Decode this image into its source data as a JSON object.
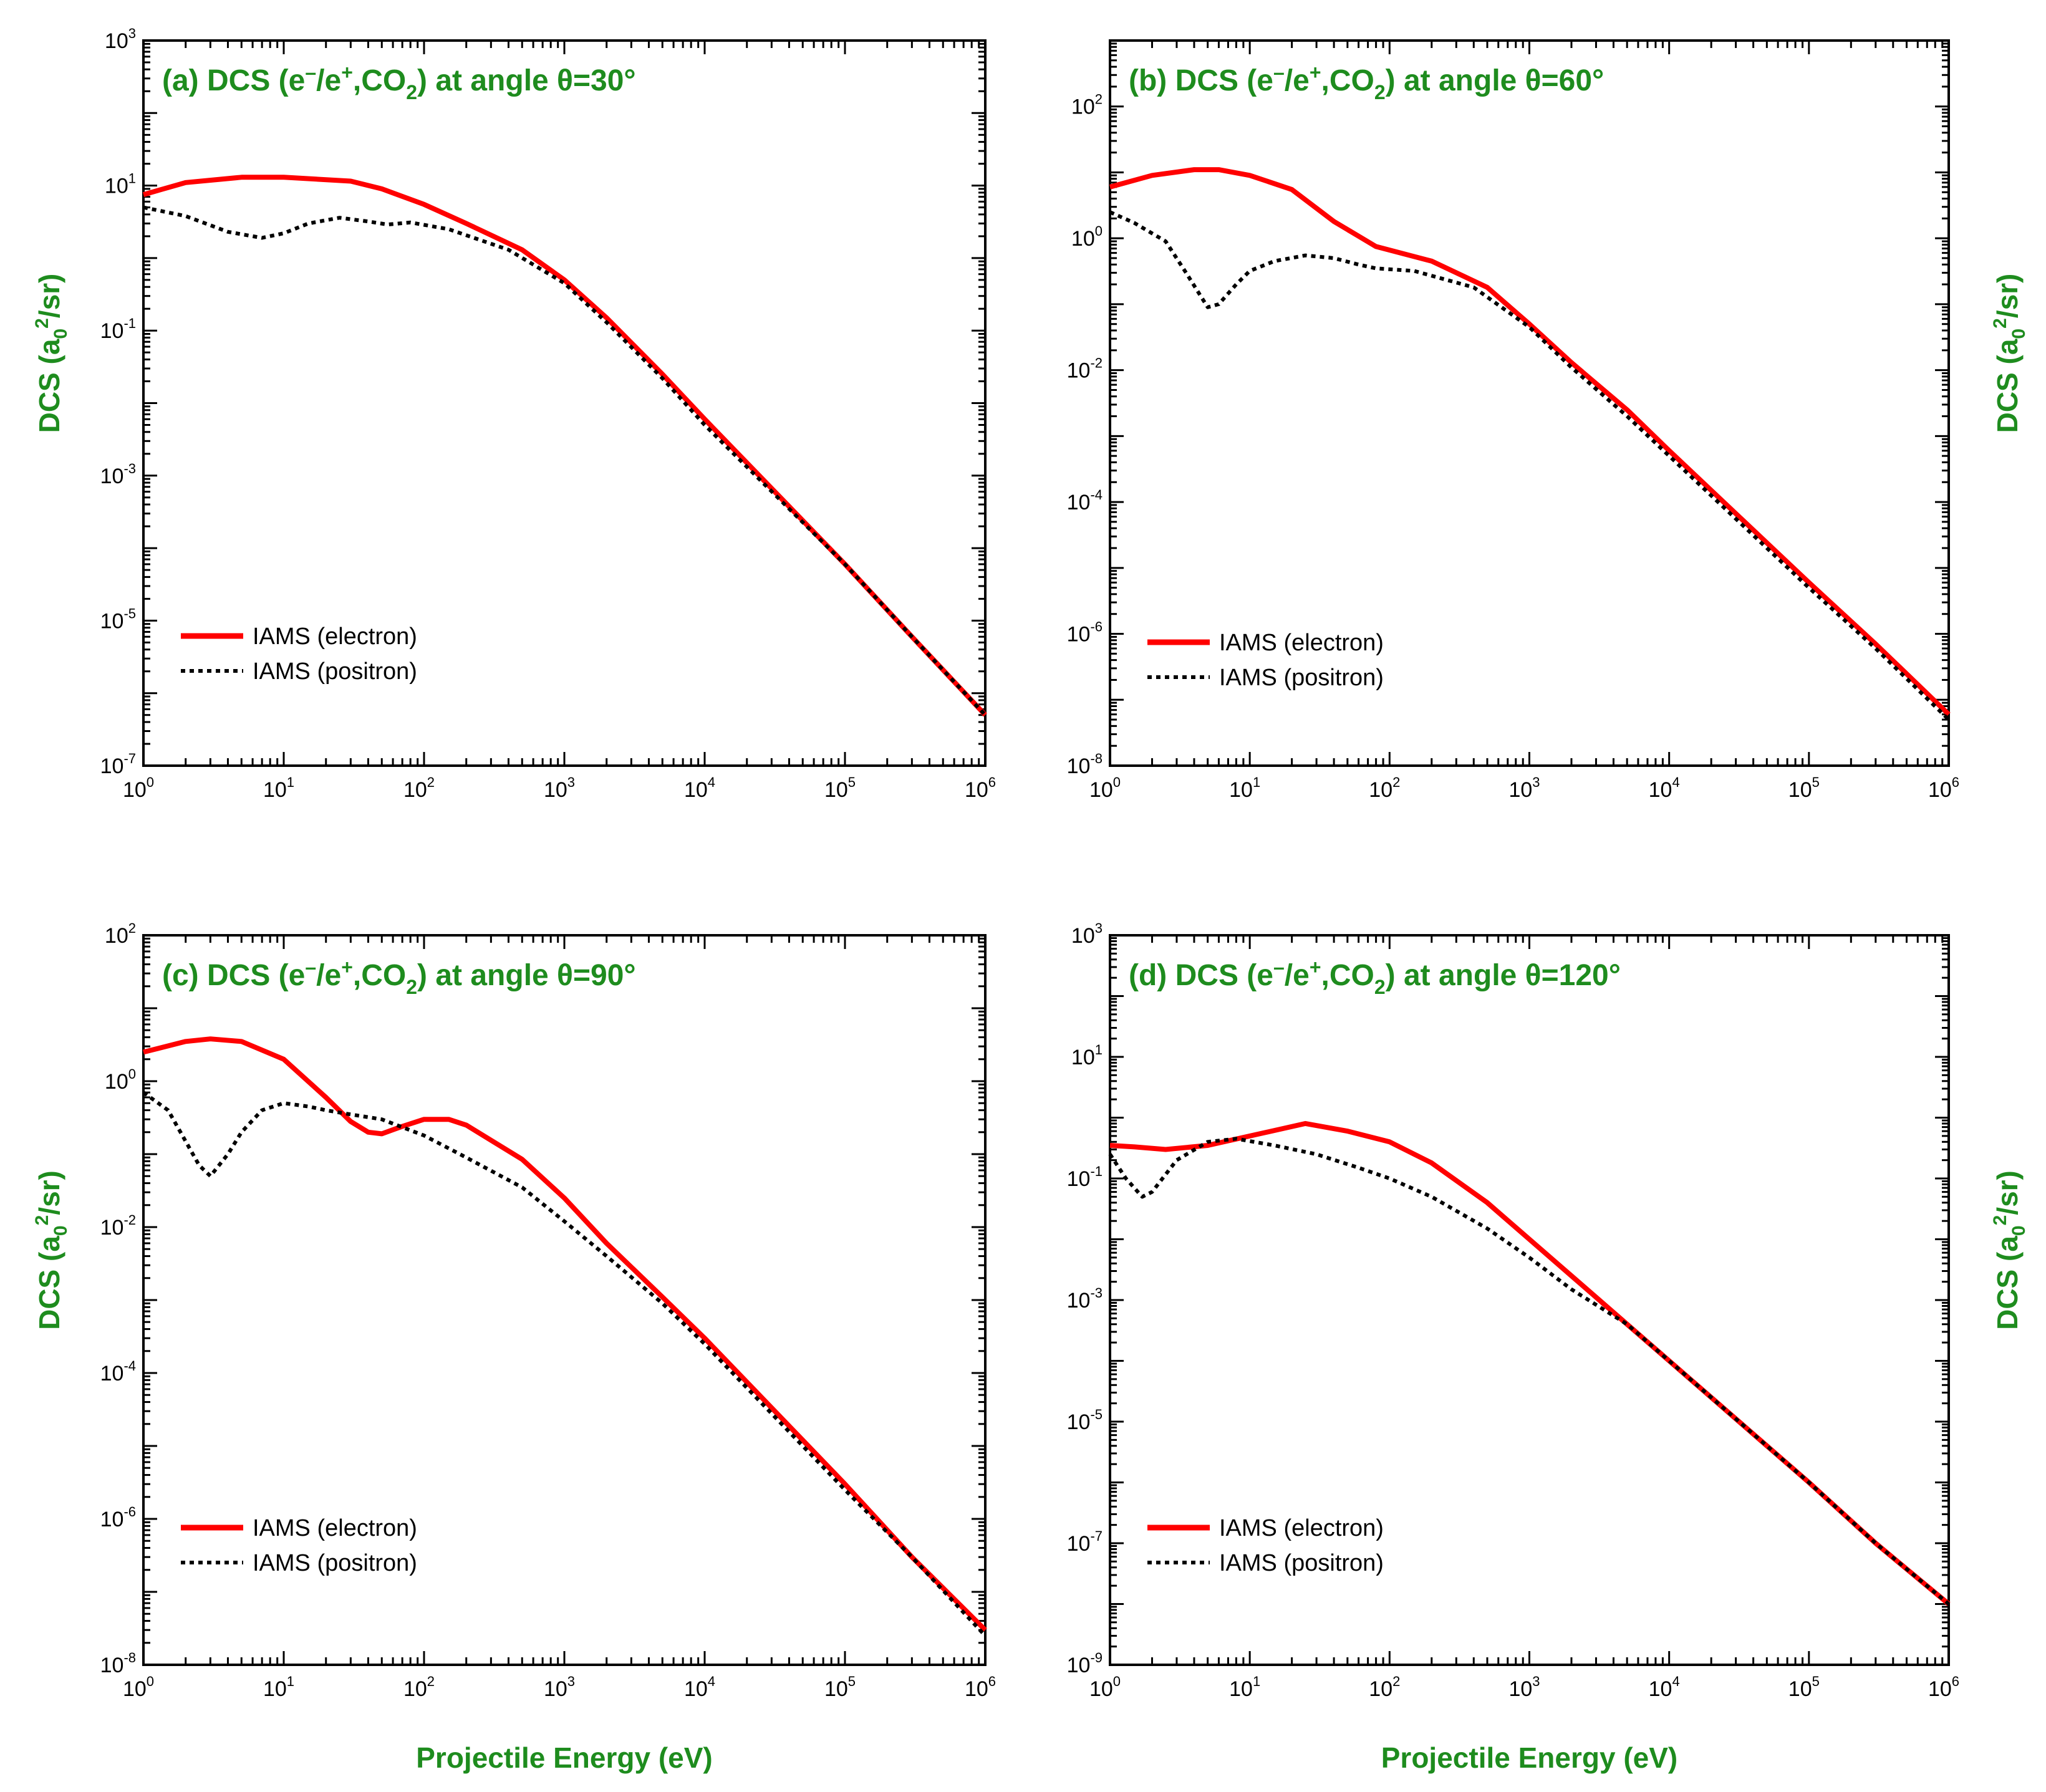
{
  "colors": {
    "electron": "#ff0000",
    "positron": "#000000",
    "label": "#1e8c1e"
  },
  "chart_data": [
    {
      "type": "line",
      "panel": "a",
      "title": "(a) DCS (e–/e+,CO2) at angle θ=30°",
      "title_parts": {
        "pre": "(a) DCS (e",
        "sup1": "–",
        "mid": "/e",
        "sup2": "+",
        "mid2": ",CO",
        "sub": "2",
        "post": ") at angle θ=30°"
      },
      "xlabel": "Projectile Energy (eV)",
      "ylabel": "DCS (a0²/sr)",
      "ylabel_parts": {
        "pre": "DCS (a",
        "sub": "0",
        "sup": "2",
        "post": "/sr)"
      },
      "xscale": "log",
      "yscale": "log",
      "xlim_exp": [
        0,
        6
      ],
      "ylim_exp": [
        -7,
        3
      ],
      "x_ticks": [
        "10^0",
        "10^1",
        "10^2",
        "10^3",
        "10^4",
        "10^5",
        "10^6"
      ],
      "y_ticks": [
        "10^-7",
        "10^-5",
        "10^-3",
        "10^-1",
        "10^1",
        "10^3"
      ],
      "legend": {
        "position": "lower-left",
        "entries": [
          "IAMS (electron)",
          "IAMS (positron)"
        ]
      },
      "series": [
        {
          "name": "IAMS (electron)",
          "style": "solid",
          "x": [
            1,
            2,
            5,
            10,
            30,
            50,
            100,
            200,
            500,
            1000,
            2000,
            5000,
            10000,
            100000,
            300000,
            1000000
          ],
          "y": [
            7.5,
            11,
            13,
            13,
            11.5,
            9,
            5.5,
            3,
            1.3,
            0.5,
            0.15,
            0.025,
            0.006,
            6e-05,
            6e-06,
            5e-07
          ]
        },
        {
          "name": "IAMS (positron)",
          "style": "dotted",
          "x": [
            1,
            2,
            4,
            7,
            10,
            15,
            25,
            40,
            55,
            80,
            150,
            400,
            1000,
            2000,
            5000,
            10000,
            100000,
            300000,
            1000000
          ],
          "y": [
            5,
            3.8,
            2.3,
            1.9,
            2.2,
            3,
            3.6,
            3.2,
            2.9,
            3.1,
            2.5,
            1.3,
            0.45,
            0.13,
            0.022,
            0.005,
            6e-05,
            6e-06,
            5e-07
          ]
        }
      ]
    },
    {
      "type": "line",
      "panel": "b",
      "title": "(b) DCS (e–/e+,CO2) at angle θ=60°",
      "title_parts": {
        "pre": "(b) DCS (e",
        "sup1": "–",
        "mid": "/e",
        "sup2": "+",
        "mid2": ",CO",
        "sub": "2",
        "post": ") at angle θ=60°"
      },
      "xlabel": "",
      "ylabel": "DCS (a0²/sr)",
      "ylabel_parts": {
        "pre": "DCS (a",
        "sub": "0",
        "sup": "2",
        "post": "/sr)"
      },
      "xscale": "log",
      "yscale": "log",
      "xlim_exp": [
        0,
        6
      ],
      "ylim_exp": [
        -8,
        3
      ],
      "x_ticks": [
        "10^0",
        "10^1",
        "10^2",
        "10^3",
        "10^4",
        "10^5",
        "10^6"
      ],
      "y_ticks": [
        "10^-8",
        "10^-6",
        "10^-4",
        "10^-2",
        "10^0",
        "10^2"
      ],
      "legend": {
        "position": "lower-left",
        "entries": [
          "IAMS (electron)",
          "IAMS (positron)"
        ]
      },
      "series": [
        {
          "name": "IAMS (electron)",
          "style": "solid",
          "x": [
            1,
            2,
            4,
            6,
            10,
            20,
            40,
            80,
            200,
            500,
            1000,
            2000,
            5000,
            10000,
            100000,
            300000,
            1000000
          ],
          "y": [
            6,
            9,
            11,
            11,
            9,
            5.5,
            1.8,
            0.75,
            0.45,
            0.18,
            0.05,
            0.013,
            0.0025,
            0.0006,
            6e-06,
            7e-07,
            6e-08
          ]
        },
        {
          "name": "IAMS (positron)",
          "style": "dotted",
          "x": [
            1,
            1.5,
            2.5,
            3.5,
            5,
            6,
            8,
            10,
            15,
            25,
            40,
            60,
            80,
            150,
            400,
            1000,
            2000,
            5000,
            10000,
            100000,
            300000,
            1000000
          ],
          "y": [
            2.5,
            1.7,
            0.9,
            0.3,
            0.09,
            0.1,
            0.2,
            0.32,
            0.45,
            0.55,
            0.5,
            0.4,
            0.35,
            0.32,
            0.18,
            0.045,
            0.011,
            0.002,
            0.0005,
            5e-06,
            6e-07,
            5e-08
          ]
        }
      ]
    },
    {
      "type": "line",
      "panel": "c",
      "title": "(c) DCS (e–/e+,CO2) at angle θ=90°",
      "title_parts": {
        "pre": "(c) DCS (e",
        "sup1": "–",
        "mid": "/e",
        "sup2": "+",
        "mid2": ",CO",
        "sub": "2",
        "post": ") at angle θ=90°"
      },
      "xlabel": "Projectile Energy (eV)",
      "ylabel": "DCS (a0²/sr)",
      "ylabel_parts": {
        "pre": "DCS (a",
        "sub": "0",
        "sup": "2",
        "post": "/sr)"
      },
      "xscale": "log",
      "yscale": "log",
      "xlim_exp": [
        0,
        6
      ],
      "ylim_exp": [
        -8,
        2
      ],
      "x_ticks": [
        "10^0",
        "10^1",
        "10^2",
        "10^3",
        "10^4",
        "10^5",
        "10^6"
      ],
      "y_ticks": [
        "10^-8",
        "10^-6",
        "10^-4",
        "10^-2",
        "10^0",
        "10^2"
      ],
      "legend": {
        "position": "lower-left",
        "entries": [
          "IAMS (electron)",
          "IAMS (positron)"
        ]
      },
      "series": [
        {
          "name": "IAMS (electron)",
          "style": "solid",
          "x": [
            1,
            2,
            3,
            5,
            10,
            20,
            30,
            40,
            50,
            70,
            100,
            150,
            200,
            500,
            1000,
            2000,
            5000,
            10000,
            100000,
            300000,
            1000000
          ],
          "y": [
            2.5,
            3.5,
            3.8,
            3.5,
            2,
            0.6,
            0.28,
            0.2,
            0.19,
            0.24,
            0.3,
            0.3,
            0.25,
            0.085,
            0.025,
            0.006,
            0.0011,
            0.0003,
            3e-06,
            3e-07,
            3e-08
          ]
        },
        {
          "name": "IAMS (positron)",
          "style": "dotted",
          "x": [
            1,
            1.5,
            2,
            2.5,
            3,
            4,
            5,
            7,
            10,
            15,
            20,
            30,
            50,
            100,
            200,
            500,
            1000,
            2000,
            5000,
            10000,
            100000,
            300000,
            1000000
          ],
          "y": [
            0.7,
            0.4,
            0.15,
            0.07,
            0.05,
            0.1,
            0.2,
            0.4,
            0.5,
            0.45,
            0.4,
            0.35,
            0.3,
            0.18,
            0.09,
            0.035,
            0.012,
            0.004,
            0.0009,
            0.00025,
            2.5e-06,
            3e-07,
            2.5e-08
          ]
        }
      ]
    },
    {
      "type": "line",
      "panel": "d",
      "title": "(d) DCS (e–/e+,CO2) at angle θ=120°",
      "title_parts": {
        "pre": "(d) DCS (e",
        "sup1": "–",
        "mid": "/e",
        "sup2": "+",
        "mid2": ",CO",
        "sub": "2",
        "post": ") at angle θ=120°"
      },
      "xlabel": "Projectile Energy (eV)",
      "ylabel": "DCS (a0²/sr)",
      "ylabel_parts": {
        "pre": "DCS (a",
        "sub": "0",
        "sup": "2",
        "post": "/sr)"
      },
      "xscale": "log",
      "yscale": "log",
      "xlim_exp": [
        0,
        6
      ],
      "ylim_exp": [
        -9,
        3
      ],
      "x_ticks": [
        "10^0",
        "10^1",
        "10^2",
        "10^3",
        "10^4",
        "10^5",
        "10^6"
      ],
      "y_ticks": [
        "10^-9",
        "10^-7",
        "10^-5",
        "10^-3",
        "10^-1",
        "10^1",
        "10^3"
      ],
      "legend": {
        "position": "lower-left",
        "entries": [
          "IAMS (electron)",
          "IAMS (positron)"
        ]
      },
      "series": [
        {
          "name": "IAMS (electron)",
          "style": "solid",
          "x": [
            1,
            1.5,
            2.5,
            5,
            10,
            25,
            50,
            100,
            200,
            500,
            1000,
            2000,
            5000,
            10000,
            100000,
            300000,
            1000000
          ],
          "y": [
            0.35,
            0.33,
            0.3,
            0.35,
            0.5,
            0.8,
            0.6,
            0.4,
            0.18,
            0.04,
            0.01,
            0.0025,
            0.0004,
            0.0001,
            1e-06,
            1e-07,
            1e-08
          ]
        },
        {
          "name": "IAMS (positron)",
          "style": "dotted",
          "x": [
            1,
            1.3,
            1.7,
            2,
            3,
            5,
            8,
            15,
            30,
            60,
            100,
            200,
            500,
            1000,
            2000,
            5000,
            10000,
            100000,
            300000,
            1000000
          ],
          "y": [
            0.25,
            0.1,
            0.05,
            0.06,
            0.2,
            0.4,
            0.45,
            0.35,
            0.25,
            0.15,
            0.1,
            0.05,
            0.015,
            0.005,
            0.0015,
            0.0004,
            0.0001,
            1e-06,
            1e-07,
            1e-08
          ]
        }
      ]
    }
  ]
}
